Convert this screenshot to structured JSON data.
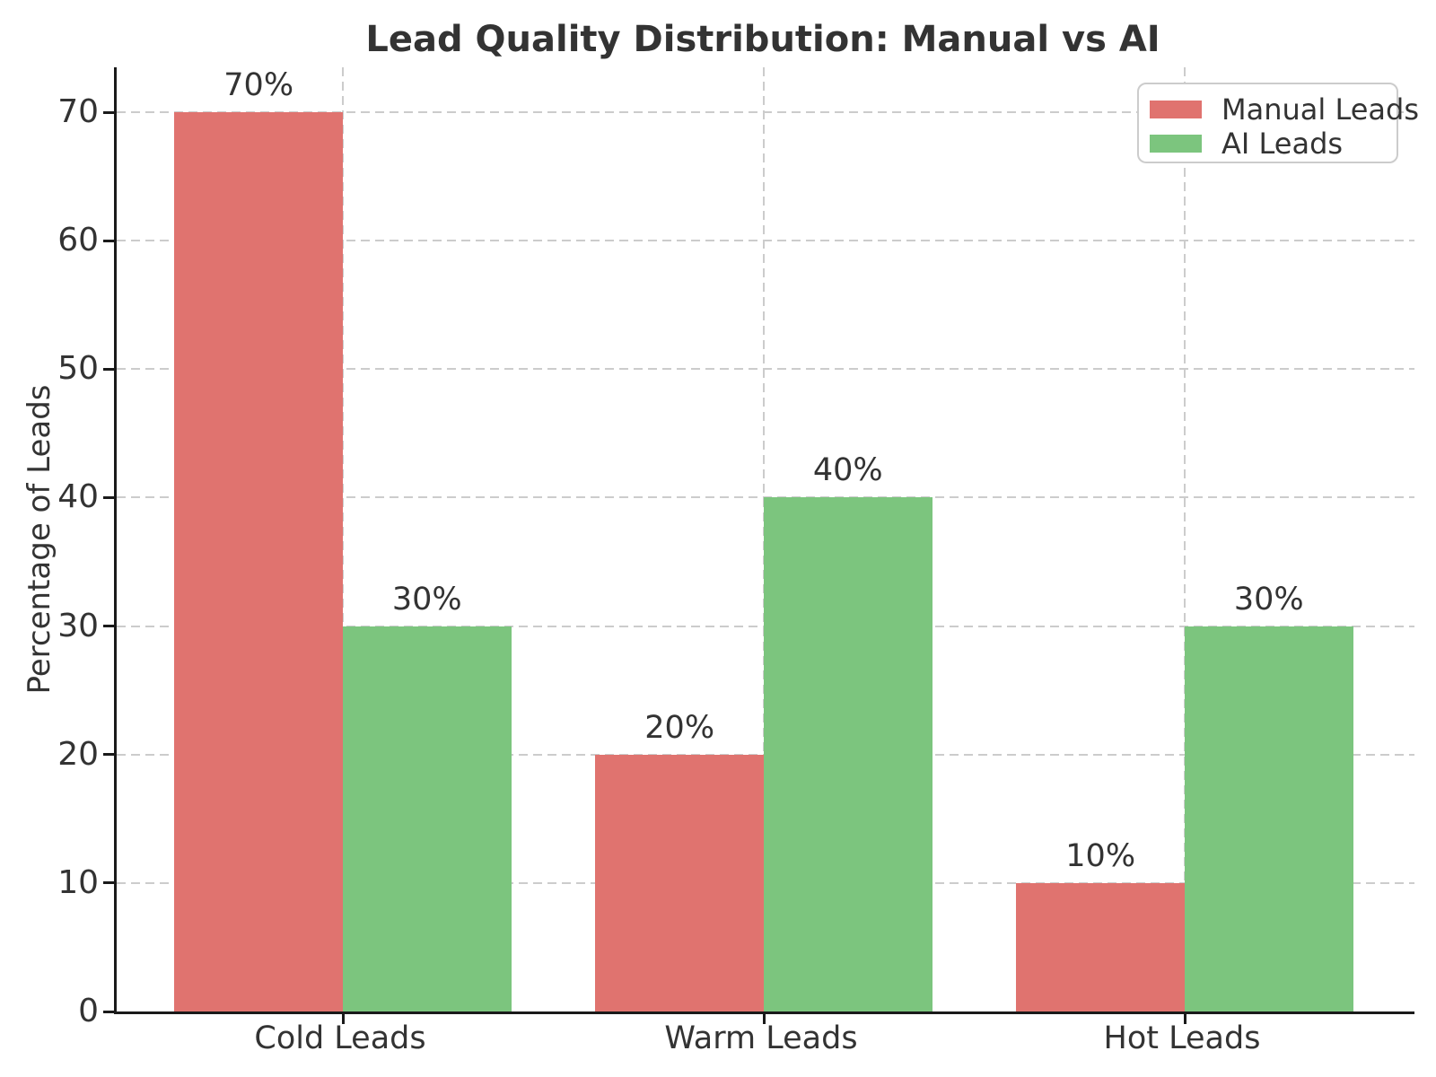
{
  "chart_data": {
    "type": "bar",
    "title": "Lead Quality Distribution: Manual vs AI",
    "categories": [
      "Cold Leads",
      "Warm Leads",
      "Hot Leads"
    ],
    "series": [
      {
        "name": "Manual Leads",
        "color": "#e0736f",
        "values": [
          70,
          20,
          10
        ],
        "labels": [
          "70%",
          "20%",
          "10%"
        ]
      },
      {
        "name": "AI Leads",
        "color": "#7cc57e",
        "values": [
          30,
          40,
          30
        ],
        "labels": [
          "30%",
          "40%",
          "30%"
        ]
      }
    ],
    "xlabel": "",
    "ylabel": "Percentage of Leads",
    "ylim": [
      0,
      73.5
    ],
    "yticks": [
      0,
      10,
      20,
      30,
      40,
      50,
      60,
      70
    ],
    "grid": true,
    "grid_style": "dashed",
    "legend_position": "upper right",
    "bar_width": 0.4
  },
  "colors": {
    "manual": "#e0736f",
    "ai": "#7cc57e",
    "grid": "#cccccc",
    "text": "#333333",
    "spine": "#1a1a1a",
    "background": "#ffffff"
  }
}
